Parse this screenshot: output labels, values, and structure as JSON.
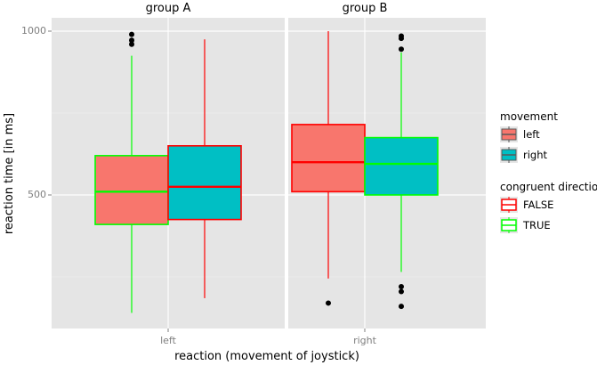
{
  "chart_data": {
    "type": "boxplot",
    "facets": [
      "group A",
      "group B"
    ],
    "xlabel": "reaction (movement of joystick)",
    "ylabel": "reaction time [in ms]",
    "xticks": [
      "left",
      "right"
    ],
    "yticks": [
      500,
      1000
    ],
    "ylim": [
      140,
      1005
    ],
    "grid": true,
    "legend": {
      "placement": "right",
      "groups": [
        {
          "title": "movement",
          "kind": "fill",
          "entries": [
            {
              "label": "left",
              "color": "#F8766D"
            },
            {
              "label": "right",
              "color": "#00BFC4"
            }
          ]
        },
        {
          "title": "congruent direction",
          "kind": "outline",
          "entries": [
            {
              "label": "FALSE",
              "color": "#FF0000"
            },
            {
              "label": "TRUE",
              "color": "#00FF00"
            }
          ]
        }
      ]
    },
    "boxes": [
      {
        "facet": "group A",
        "reaction": "left",
        "movement": "left",
        "congruent": "TRUE",
        "fill": "#F8766D",
        "outline": "#00FF00",
        "whisker_low": 140,
        "q1": 410,
        "median": 510,
        "q3": 620,
        "whisker_high": 925,
        "outliers": [
          990,
          972,
          960
        ]
      },
      {
        "facet": "group A",
        "reaction": "left",
        "movement": "right",
        "congruent": "FALSE",
        "fill": "#00BFC4",
        "outline": "#FF0000",
        "whisker_low": 185,
        "q1": 425,
        "median": 525,
        "q3": 650,
        "whisker_high": 975,
        "outliers": []
      },
      {
        "facet": "group B",
        "reaction": "right",
        "movement": "left",
        "congruent": "FALSE",
        "fill": "#F8766D",
        "outline": "#FF0000",
        "whisker_low": 245,
        "q1": 510,
        "median": 600,
        "q3": 715,
        "whisker_high": 1000,
        "outliers": [
          170
        ]
      },
      {
        "facet": "group B",
        "reaction": "right",
        "movement": "right",
        "congruent": "TRUE",
        "fill": "#00BFC4",
        "outline": "#00FF00",
        "whisker_low": 265,
        "q1": 500,
        "median": 595,
        "q3": 675,
        "whisker_high": 935,
        "outliers": [
          985,
          978,
          945,
          220,
          205,
          160
        ]
      }
    ]
  },
  "colors": {
    "panel_bg": "#E5E5E5",
    "grid_major": "#FFFFFF",
    "grid_minor": "#F2F2F2"
  }
}
